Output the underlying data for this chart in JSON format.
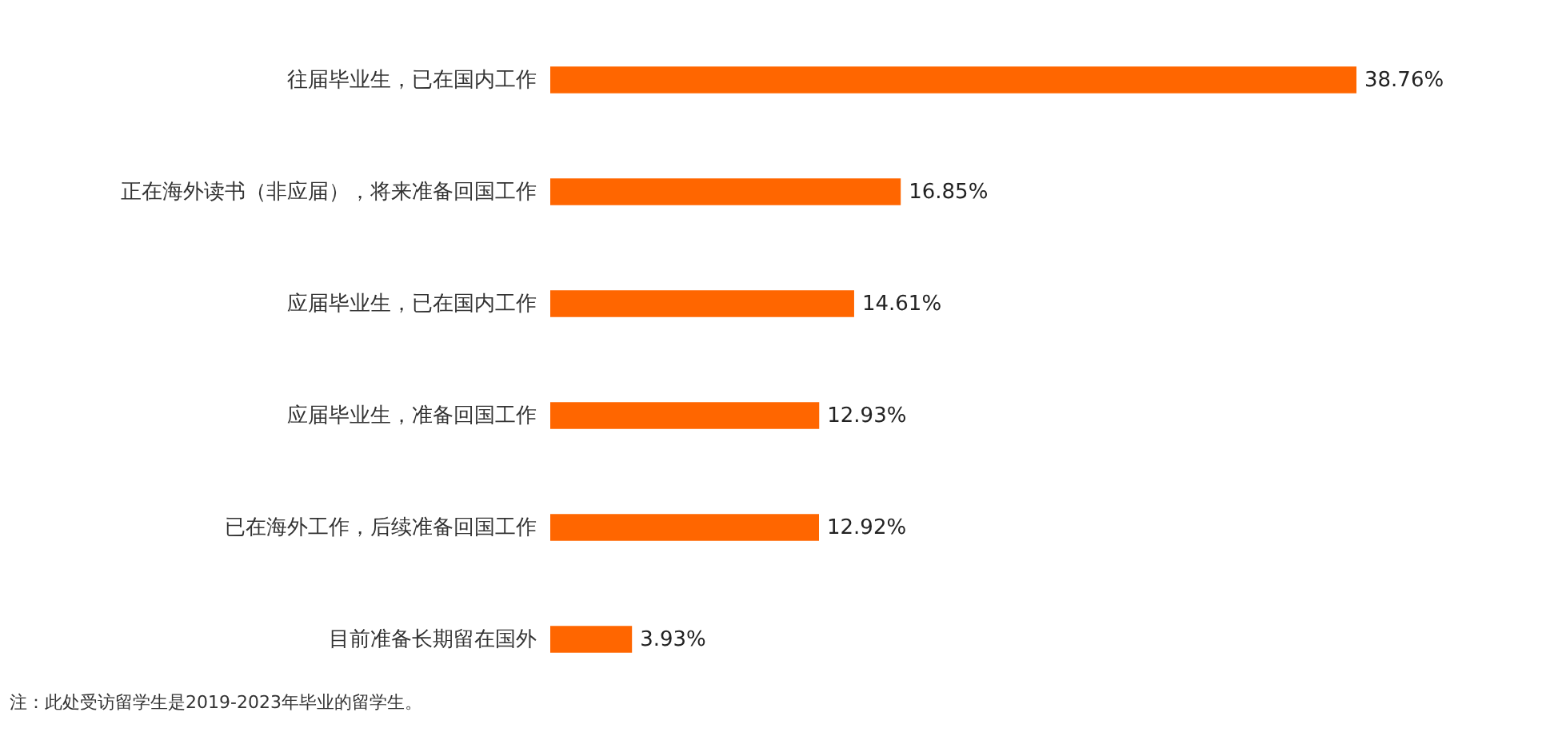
{
  "chart_data": {
    "type": "bar",
    "orientation": "horizontal",
    "color": "#ff6600",
    "categories": [
      "往届毕业生，已在国内工作",
      "正在海外读书（非应届），将来准备回国工作",
      "应届毕业生，已在国内工作",
      "应届毕业生，准备回国工作",
      "已在海外工作，后续准备回国工作",
      "目前准备长期留在国外"
    ],
    "values": [
      38.76,
      16.85,
      14.61,
      12.93,
      12.92,
      3.93
    ],
    "value_labels": [
      "38.76%",
      "16.85%",
      "14.61%",
      "12.93%",
      "12.92%",
      "3.93%"
    ],
    "annotations": [
      "注：此处受访留学生是2019-2023年毕业的留学生。"
    ]
  }
}
